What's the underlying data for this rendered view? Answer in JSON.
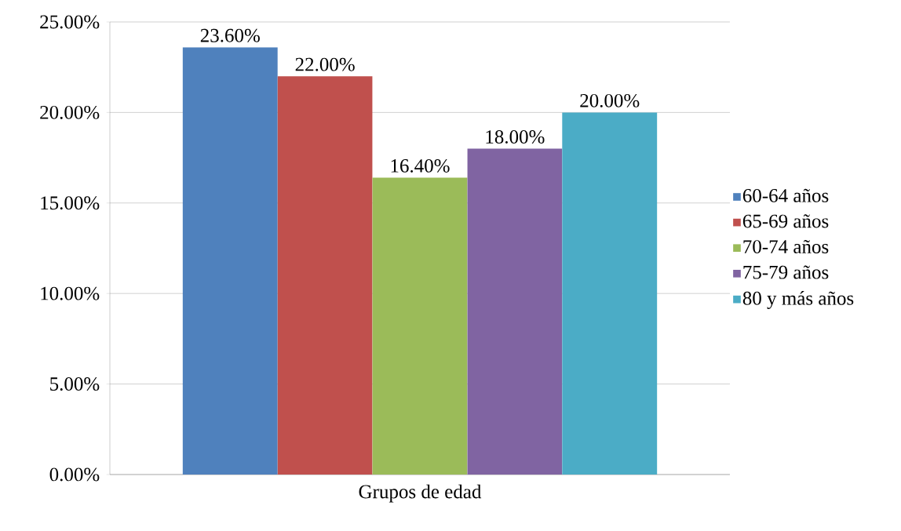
{
  "chart_data": {
    "type": "bar",
    "categories": [
      "Grupos de edad"
    ],
    "series": [
      {
        "name": "60-64 años",
        "color": "#4f81bd",
        "values": [
          23.6
        ],
        "value_labels": [
          "23.60%"
        ]
      },
      {
        "name": "65-69 años",
        "color": "#c0504d",
        "values": [
          22.0
        ],
        "value_labels": [
          "22.00%"
        ]
      },
      {
        "name": "70-74 años",
        "color": "#9bbb59",
        "values": [
          16.4
        ],
        "value_labels": [
          "16.40%"
        ]
      },
      {
        "name": "75-79 años",
        "color": "#8064a2",
        "values": [
          18.0
        ],
        "value_labels": [
          "18.00%"
        ]
      },
      {
        "name": "80 y más años",
        "color": "#4bacc6",
        "values": [
          20.0
        ],
        "value_labels": [
          "20.00%"
        ]
      }
    ],
    "ylim": [
      0,
      25
    ],
    "yticks": [
      {
        "value": 0,
        "label": "0.00%"
      },
      {
        "value": 5,
        "label": "5.00%"
      },
      {
        "value": 10,
        "label": "10.00%"
      },
      {
        "value": 15,
        "label": "15.00%"
      },
      {
        "value": 20,
        "label": "20.00%"
      },
      {
        "value": 25,
        "label": "25.00%"
      }
    ],
    "grid": "y",
    "legend": "right"
  }
}
